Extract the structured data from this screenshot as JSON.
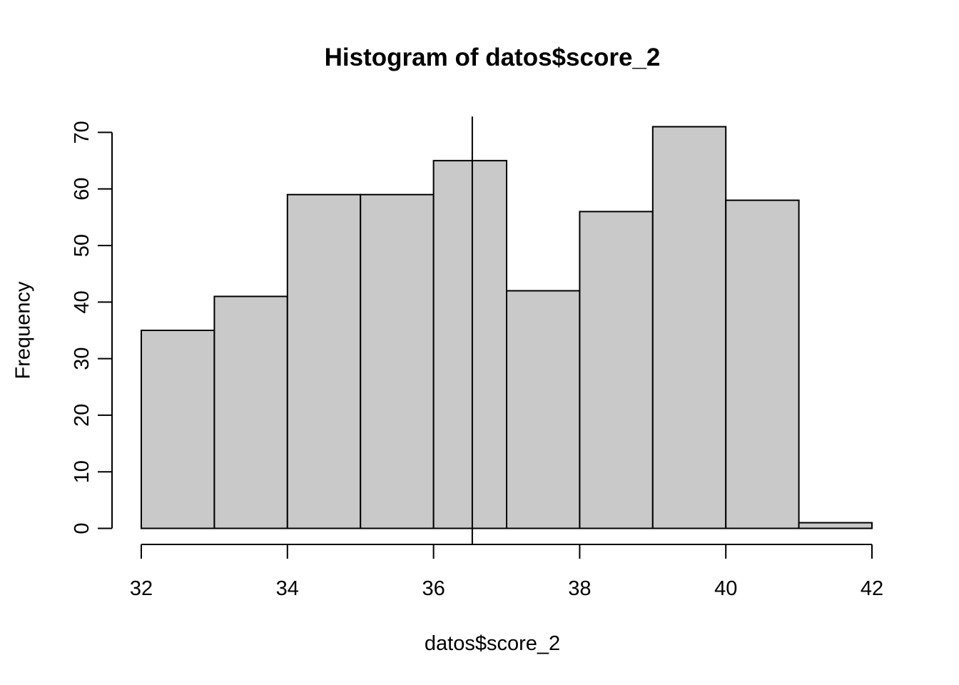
{
  "chart_data": {
    "type": "bar",
    "subtype": "histogram",
    "title": "Histogram of datos$score_2",
    "xlabel": "datos$score_2",
    "ylabel": "Frequency",
    "bin_edges": [
      32,
      33,
      34,
      35,
      36,
      37,
      38,
      39,
      40,
      41,
      42
    ],
    "counts": [
      35,
      41,
      59,
      59,
      65,
      42,
      56,
      71,
      58,
      1
    ],
    "x_ticks": [
      "32",
      "34",
      "36",
      "38",
      "40",
      "42"
    ],
    "x_tick_values": [
      32,
      34,
      36,
      38,
      40,
      42
    ],
    "y_ticks": [
      "0",
      "10",
      "20",
      "30",
      "40",
      "50",
      "60",
      "70"
    ],
    "y_tick_values": [
      0,
      10,
      20,
      30,
      40,
      50,
      60,
      70
    ],
    "xlim": [
      32,
      42
    ],
    "ylim": [
      0,
      70
    ],
    "vline_x": 36.53,
    "grid": false,
    "colors": {
      "bar_fill": "#C9C9C9",
      "bar_stroke": "#000000",
      "axis": "#000000",
      "vline": "#000000",
      "text": "#000000",
      "background": "#FFFFFF"
    }
  }
}
